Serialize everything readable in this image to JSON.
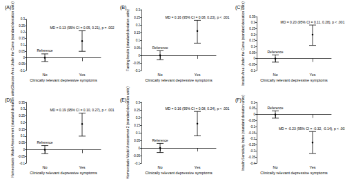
{
  "chart_data": [
    {
      "type": "scatter",
      "title": "(A)",
      "x_label": "Clinically relevant depressive symptoms",
      "y_label": "Glucose Area Under the Curve (standard deviation units)",
      "categories": [
        "No",
        "Yes"
      ],
      "values": [
        0,
        0.13
      ],
      "ci_lower": [
        -0.03,
        0.05
      ],
      "ci_upper": [
        0.03,
        0.21
      ],
      "point_labels": [
        "Reference",
        "MD = 0.13 (95% CI = 0.05, 0.21), p = .002"
      ],
      "color": "#000000",
      "ylim": [
        -0.1,
        0.3
      ],
      "yticks": [
        -0.1,
        -0.05,
        0,
        0.05,
        0.1,
        0.15,
        0.2,
        0.25,
        0.3
      ],
      "grid": false
    },
    {
      "type": "scatter",
      "title": "(B)",
      "x_label": "Clinically relevant depressive symptoms",
      "y_label": "Fasting Insulin (standard deviation units)",
      "categories": [
        "No",
        "Yes"
      ],
      "values": [
        0,
        0.16
      ],
      "ci_lower": [
        -0.03,
        0.08
      ],
      "ci_upper": [
        0.03,
        0.23
      ],
      "point_labels": [
        "Reference",
        "MD = 0.16 (95% CI = 0.08, 0.23), p < .001"
      ],
      "color": "#000000",
      "ylim": [
        -0.1,
        0.3
      ],
      "yticks": [
        -0.1,
        -0.05,
        0,
        0.05,
        0.1,
        0.15,
        0.2,
        0.25,
        0.3
      ],
      "grid": false
    },
    {
      "type": "scatter",
      "title": "(C)",
      "x_label": "Clinically relevant depressive symptoms",
      "y_label": "Insulin Area Under the Curve (standard deviation units)",
      "categories": [
        "No",
        "Yes"
      ],
      "values": [
        0,
        0.2
      ],
      "ci_lower": [
        -0.03,
        0.11
      ],
      "ci_upper": [
        0.03,
        0.28
      ],
      "point_labels": [
        "Reference",
        "MD = 0.20 (95% CI = 0.11, 0.28), p < .001"
      ],
      "color": "#000000",
      "ylim": [
        -0.1,
        0.35
      ],
      "yticks": [
        -0.1,
        -0.05,
        0,
        0.05,
        0.1,
        0.15,
        0.2,
        0.25,
        0.3,
        0.35
      ],
      "grid": false
    },
    {
      "type": "scatter",
      "title": "(D)",
      "x_label": "Clinically relevant depressive symptoms",
      "y_label": "Homeostasis Model Assessment (standard deviation units)",
      "categories": [
        "No",
        "Yes"
      ],
      "values": [
        0,
        0.19
      ],
      "ci_lower": [
        -0.03,
        0.1
      ],
      "ci_upper": [
        0.03,
        0.27
      ],
      "point_labels": [
        "Reference",
        "MD = 0.19 (95% CI = 0.10, 0.27), p < .001"
      ],
      "color": "#000000",
      "ylim": [
        -0.1,
        0.35
      ],
      "yticks": [
        -0.1,
        -0.05,
        0,
        0.05,
        0.1,
        0.15,
        0.2,
        0.25,
        0.3,
        0.35
      ],
      "grid": false
    },
    {
      "type": "scatter",
      "title": "(E)",
      "x_label": "Clinically relevant depressive symptoms",
      "y_label": "Homeostasis Model Assessment 2 (standard deviation units)",
      "categories": [
        "No",
        "Yes"
      ],
      "values": [
        0,
        0.16
      ],
      "ci_lower": [
        -0.03,
        0.08
      ],
      "ci_upper": [
        0.03,
        0.24
      ],
      "point_labels": [
        "Reference",
        "MD = 0.16 (95% CI = 0.08, 0.24), p < .001"
      ],
      "color": "#000000",
      "ylim": [
        -0.1,
        0.3
      ],
      "yticks": [
        -0.1,
        -0.05,
        0,
        0.05,
        0.1,
        0.15,
        0.2,
        0.25,
        0.3
      ],
      "grid": false
    },
    {
      "type": "scatter",
      "title": "(F)",
      "x_label": "Clinically relevant depressive symptoms",
      "y_label": "Insulin Sensitivity Index (standard deviation units)",
      "categories": [
        "No",
        "Yes"
      ],
      "values": [
        0,
        -0.23
      ],
      "ci_lower": [
        -0.03,
        -0.32
      ],
      "ci_upper": [
        0.03,
        -0.14
      ],
      "point_labels": [
        "Reference",
        "MD = -0.23 (95% CI = -0.32, -0.14), p < .001"
      ],
      "color": "#000000",
      "ylim": [
        -0.4,
        0.1
      ],
      "yticks": [
        -0.4,
        -0.35,
        -0.3,
        -0.25,
        -0.2,
        -0.15,
        -0.1,
        -0.05,
        0,
        0.05,
        0.1
      ],
      "grid": false
    }
  ]
}
